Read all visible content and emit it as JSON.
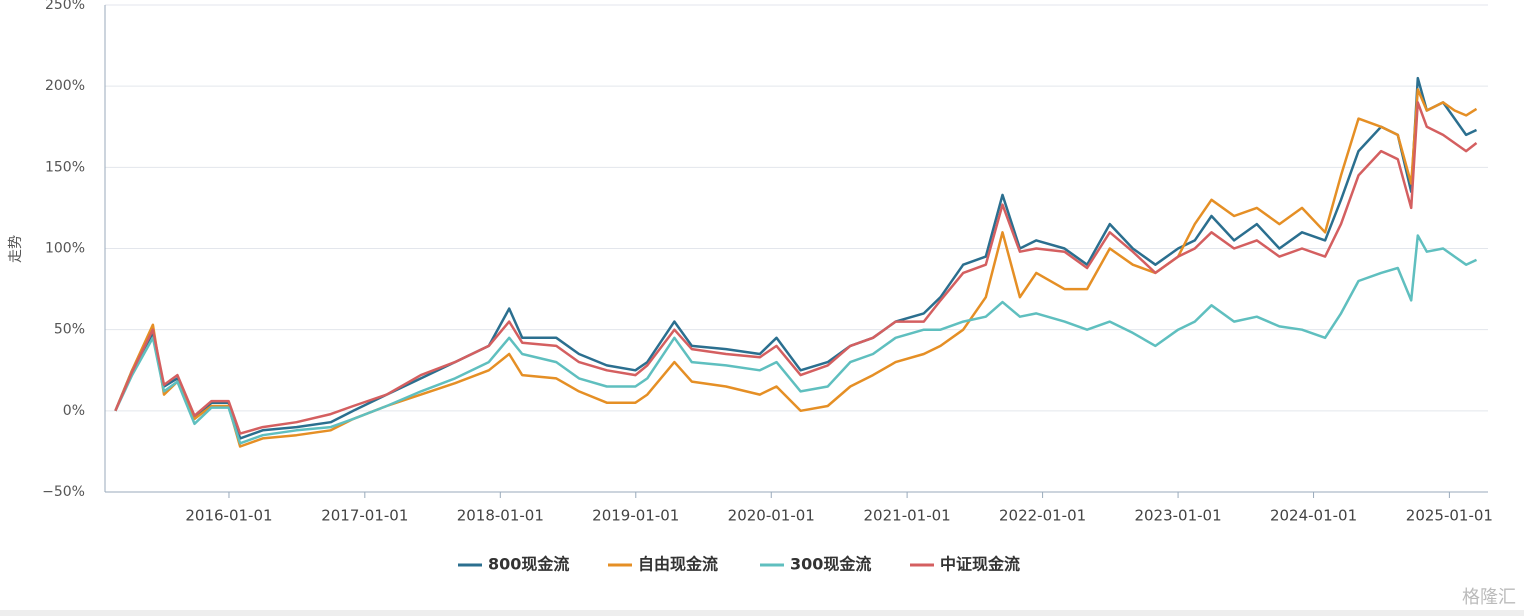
{
  "chart_data": {
    "type": "line",
    "ylabel": "走势",
    "watermark": "格隆汇",
    "x": [
      "2015-03-01",
      "2015-04-15",
      "2015-06-10",
      "2015-07-10",
      "2015-08-15",
      "2015-09-30",
      "2015-11-15",
      "2015-12-31",
      "2016-01-31",
      "2016-04-01",
      "2016-07-01",
      "2016-10-01",
      "2016-12-01",
      "2017-03-01",
      "2017-06-01",
      "2017-09-01",
      "2017-12-01",
      "2018-01-25",
      "2018-03-01",
      "2018-06-01",
      "2018-08-01",
      "2018-10-15",
      "2018-12-31",
      "2019-02-01",
      "2019-04-15",
      "2019-06-01",
      "2019-09-01",
      "2019-12-01",
      "2020-01-15",
      "2020-03-20",
      "2020-06-01",
      "2020-08-01",
      "2020-10-01",
      "2020-12-01",
      "2021-02-15",
      "2021-04-01",
      "2021-06-01",
      "2021-08-01",
      "2021-09-15",
      "2021-11-01",
      "2021-12-15",
      "2022-03-01",
      "2022-05-01",
      "2022-07-01",
      "2022-09-01",
      "2022-11-01",
      "2023-01-01",
      "2023-02-15",
      "2023-04-01",
      "2023-06-01",
      "2023-08-01",
      "2023-10-01",
      "2023-12-01",
      "2024-02-01",
      "2024-03-15",
      "2024-05-01",
      "2024-07-01",
      "2024-08-15",
      "2024-09-20",
      "2024-10-08",
      "2024-11-01",
      "2024-12-15",
      "2025-01-15",
      "2025-02-15",
      "2025-03-15"
    ],
    "series": [
      {
        "name": "800现金流",
        "color": "#2b6f8f",
        "values": [
          0,
          25,
          48,
          15,
          20,
          -5,
          5,
          5,
          -17,
          -12,
          -10,
          -7,
          0,
          10,
          20,
          30,
          40,
          63,
          45,
          45,
          35,
          28,
          25,
          30,
          55,
          40,
          38,
          35,
          45,
          25,
          30,
          40,
          45,
          55,
          60,
          70,
          90,
          95,
          133,
          100,
          105,
          100,
          90,
          115,
          100,
          90,
          100,
          105,
          120,
          105,
          115,
          100,
          110,
          105,
          130,
          160,
          175,
          170,
          135,
          205,
          185,
          190,
          180,
          170,
          173
        ]
      },
      {
        "name": "自由现金流",
        "color": "#e58f25",
        "values": [
          0,
          25,
          53,
          10,
          18,
          -5,
          3,
          3,
          -22,
          -17,
          -15,
          -12,
          -5,
          3,
          10,
          17,
          25,
          35,
          22,
          20,
          12,
          5,
          5,
          10,
          30,
          18,
          15,
          10,
          15,
          0,
          3,
          15,
          22,
          30,
          35,
          40,
          50,
          70,
          110,
          70,
          85,
          75,
          75,
          100,
          90,
          85,
          95,
          115,
          130,
          120,
          125,
          115,
          125,
          110,
          145,
          180,
          175,
          170,
          140,
          198,
          185,
          190,
          185,
          182,
          186
        ]
      },
      {
        "name": "300现金流",
        "color": "#5fbfbf",
        "values": [
          0,
          22,
          45,
          12,
          18,
          -8,
          2,
          2,
          -20,
          -15,
          -12,
          -10,
          -5,
          3,
          12,
          20,
          30,
          45,
          35,
          30,
          20,
          15,
          15,
          20,
          45,
          30,
          28,
          25,
          30,
          12,
          15,
          30,
          35,
          45,
          50,
          50,
          55,
          58,
          67,
          58,
          60,
          55,
          50,
          55,
          48,
          40,
          50,
          55,
          65,
          55,
          58,
          52,
          50,
          45,
          60,
          80,
          85,
          88,
          68,
          108,
          98,
          100,
          95,
          90,
          93
        ]
      },
      {
        "name": "中证现金流",
        "color": "#d45f60",
        "values": [
          0,
          24,
          50,
          16,
          22,
          -3,
          6,
          6,
          -14,
          -10,
          -7,
          -2,
          3,
          10,
          22,
          30,
          40,
          55,
          42,
          40,
          30,
          25,
          22,
          28,
          50,
          38,
          35,
          33,
          40,
          22,
          28,
          40,
          45,
          55,
          55,
          68,
          85,
          90,
          127,
          98,
          100,
          98,
          88,
          110,
          98,
          85,
          95,
          100,
          110,
          100,
          105,
          95,
          100,
          95,
          115,
          145,
          160,
          155,
          125,
          190,
          175,
          170,
          165,
          160,
          165
        ]
      }
    ],
    "xlim": [
      "2015-02-01",
      "2025-04-15"
    ],
    "xticks": [
      "2016-01-01",
      "2017-01-01",
      "2018-01-01",
      "2019-01-01",
      "2020-01-01",
      "2021-01-01",
      "2022-01-01",
      "2023-01-01",
      "2024-01-01",
      "2025-01-01"
    ],
    "ylim": [
      -50,
      250
    ],
    "yticks": [
      {
        "value": -50,
        "label": "−50%"
      },
      {
        "value": 0,
        "label": "0%"
      },
      {
        "value": 50,
        "label": "50%"
      },
      {
        "value": 100,
        "label": "100%"
      },
      {
        "value": 150,
        "label": "150%"
      },
      {
        "value": 200,
        "label": "200%"
      },
      {
        "value": 250,
        "label": "250%"
      }
    ],
    "grid": true,
    "legend": "bottom"
  }
}
